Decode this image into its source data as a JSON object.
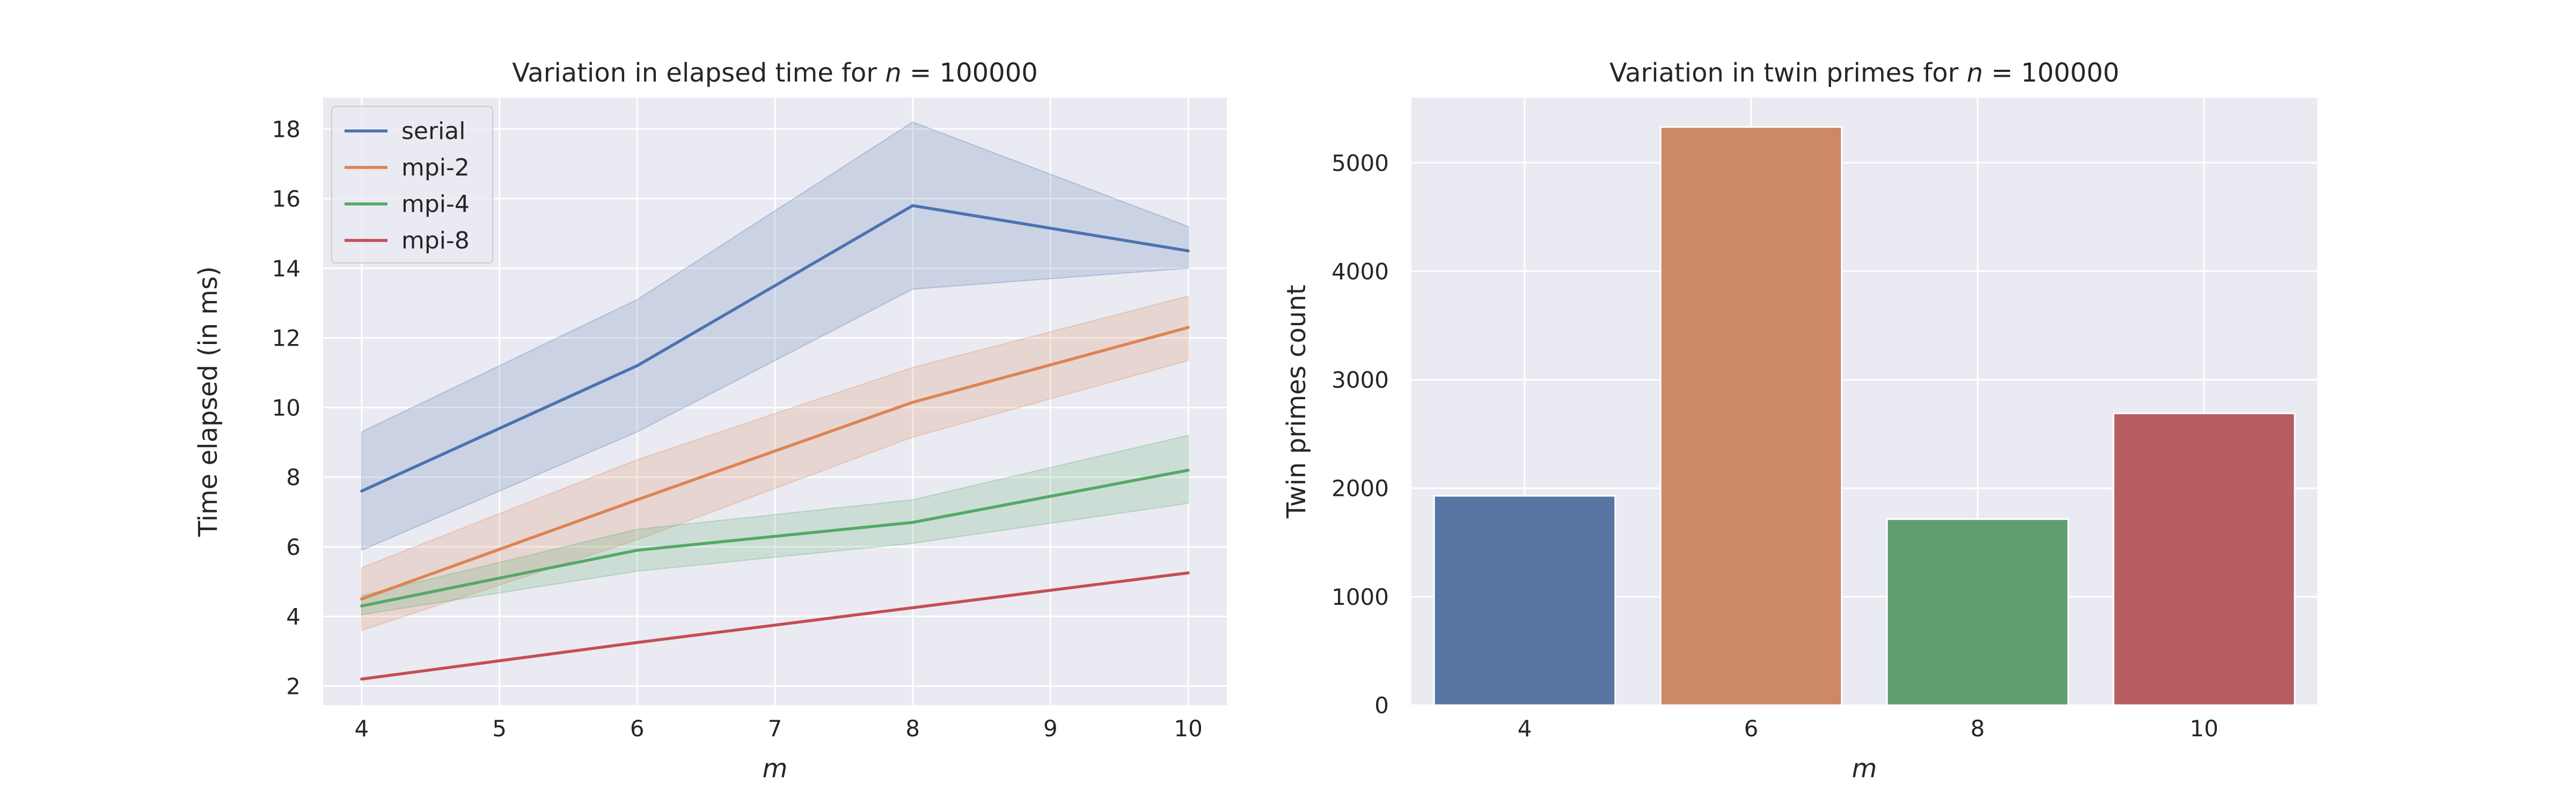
{
  "chart_data": [
    {
      "type": "line",
      "title": "Variation in elapsed time for n = 100000",
      "title_parts": {
        "prefix": "Variation in elapsed time for ",
        "var": "n",
        "suffix": " = 100000"
      },
      "xlabel": "m",
      "ylabel": "Time elapsed (in ms)",
      "x": [
        4,
        6,
        8,
        10
      ],
      "xlim": [
        3.72,
        10.28
      ],
      "ylim": [
        1.45,
        18.9
      ],
      "xticks": [
        4,
        5,
        6,
        7,
        8,
        9,
        10
      ],
      "yticks": [
        2,
        4,
        6,
        8,
        10,
        12,
        14,
        16,
        18
      ],
      "grid": true,
      "legend": "top-left",
      "series": [
        {
          "name": "serial",
          "color": "#4c72b0",
          "values": [
            7.6,
            11.2,
            15.8,
            14.5
          ],
          "ci_low": [
            5.9,
            9.3,
            13.4,
            14.0
          ],
          "ci_high": [
            9.3,
            13.1,
            18.2,
            15.2
          ]
        },
        {
          "name": "mpi-2",
          "color": "#dd8452",
          "values": [
            4.5,
            7.35,
            10.15,
            12.3
          ],
          "ci_low": [
            3.6,
            6.2,
            9.15,
            11.35
          ],
          "ci_high": [
            5.4,
            8.5,
            11.15,
            13.2
          ]
        },
        {
          "name": "mpi-4",
          "color": "#55a868",
          "values": [
            4.3,
            5.9,
            6.7,
            8.2
          ],
          "ci_low": [
            4.05,
            5.3,
            6.1,
            7.25
          ],
          "ci_high": [
            4.6,
            6.5,
            7.35,
            9.2
          ]
        },
        {
          "name": "mpi-8",
          "color": "#c44e52",
          "values": [
            2.2,
            3.25,
            4.25,
            5.25
          ],
          "ci_low": [
            2.2,
            3.25,
            4.25,
            5.25
          ],
          "ci_high": [
            2.2,
            3.25,
            4.25,
            5.25
          ]
        }
      ]
    },
    {
      "type": "bar",
      "title": "Variation in twin primes for n = 100000",
      "title_parts": {
        "prefix": "Variation in twin primes for ",
        "var": "n",
        "suffix": " = 100000"
      },
      "xlabel": "m",
      "ylabel": "Twin primes count",
      "categories": [
        "4",
        "6",
        "8",
        "10"
      ],
      "values": [
        1930,
        5330,
        1715,
        2690
      ],
      "colors": [
        "#5975a4",
        "#cc8963",
        "#5f9e6e",
        "#b55d60"
      ],
      "ylim": [
        0,
        5600
      ],
      "yticks": [
        0,
        1000,
        2000,
        3000,
        4000,
        5000
      ],
      "grid": true
    }
  ]
}
